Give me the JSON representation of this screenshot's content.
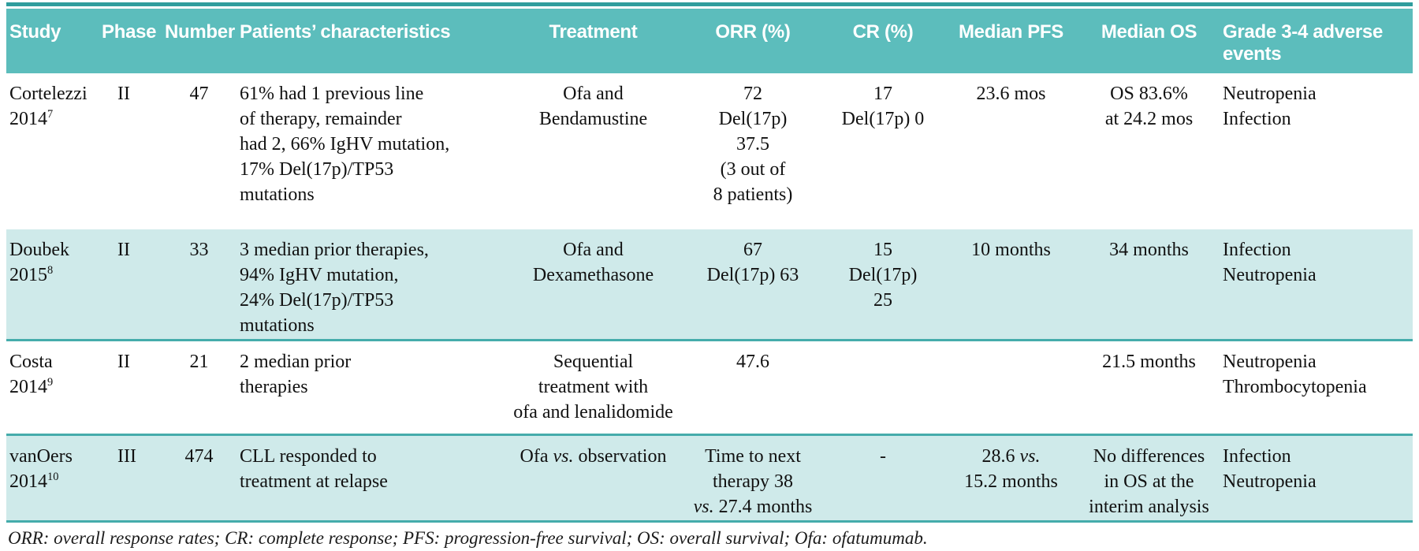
{
  "table": {
    "title_semantic": "Ofatumumab clinical studies in relapsed/refractory CLL",
    "colors": {
      "header_bg": "#5cbdbc",
      "alt_row_bg": "#cfeaea",
      "rule": "#45acab",
      "top_rule": "#2f9d9d",
      "header_text": "#ffffff",
      "body_text": "#111111"
    },
    "columns": [
      {
        "key": "study",
        "label": "Study"
      },
      {
        "key": "phase",
        "label": "Phase"
      },
      {
        "key": "number",
        "label": "Number"
      },
      {
        "key": "patients",
        "label": "Patients’ characteristics"
      },
      {
        "key": "treatment",
        "label": "Treatment"
      },
      {
        "key": "orr",
        "label": "ORR (%)"
      },
      {
        "key": "cr",
        "label": "CR (%)"
      },
      {
        "key": "pfs",
        "label": "Median PFS"
      },
      {
        "key": "os",
        "label": "Median OS"
      },
      {
        "key": "ae",
        "label": "Grade 3-4 adverse events"
      }
    ],
    "rows": [
      {
        "study": "Cortelezzi\n2014^7",
        "phase": "II",
        "number": "47",
        "patients": "61% had 1 previous line\nof therapy, remainder\nhad 2, 66% IgHV mutation,\n17% Del(17p)/TP53\nmutations",
        "treatment": "Ofa and\nBendamustine",
        "orr": "72\nDel(17p)\n37.5\n(3 out of\n8 patients)",
        "cr": "17\nDel(17p) 0",
        "pfs": "23.6 mos",
        "os": "OS 83.6%\nat 24.2 mos",
        "ae": "Neutropenia\nInfection"
      },
      {
        "study": "Doubek\n2015^8",
        "phase": "II",
        "number": "33",
        "patients": "3 median prior therapies,\n94% IgHV mutation,\n24% Del(17p)/TP53\nmutations",
        "treatment": "Ofa and\nDexamethasone",
        "orr": "67\nDel(17p) 63",
        "cr": "15\nDel(17p)\n25",
        "pfs": "10 months",
        "os": "34 months",
        "ae": "Infection\nNeutropenia"
      },
      {
        "study": "Costa 2014^9",
        "phase": "II",
        "number": "21",
        "patients": "2 median prior\ntherapies",
        "treatment": "Sequential\ntreatment with\nofa and lenalidomide",
        "orr": "47.6",
        "cr": "",
        "pfs": "",
        "os": "21.5 months",
        "ae": "Neutropenia\nThrombocytopenia"
      },
      {
        "study": "vanOers\n2014^10",
        "phase": "III",
        "number": "474",
        "patients": "CLL responded to\ntreatment at relapse",
        "treatment": "Ofa *vs.* observation",
        "orr": "Time to next\ntherapy 38\n*vs.* 27.4 months",
        "cr": "-",
        "pfs": "28.6 *vs.*\n15.2 months",
        "os": "No differences\nin OS at the\ninterim analysis",
        "ae": "Infection\nNeutropenia"
      }
    ],
    "footnote": "ORR: overall response rates; CR: complete response; PFS: progression-free survival; OS: overall survival; Ofa: ofatumumab."
  }
}
